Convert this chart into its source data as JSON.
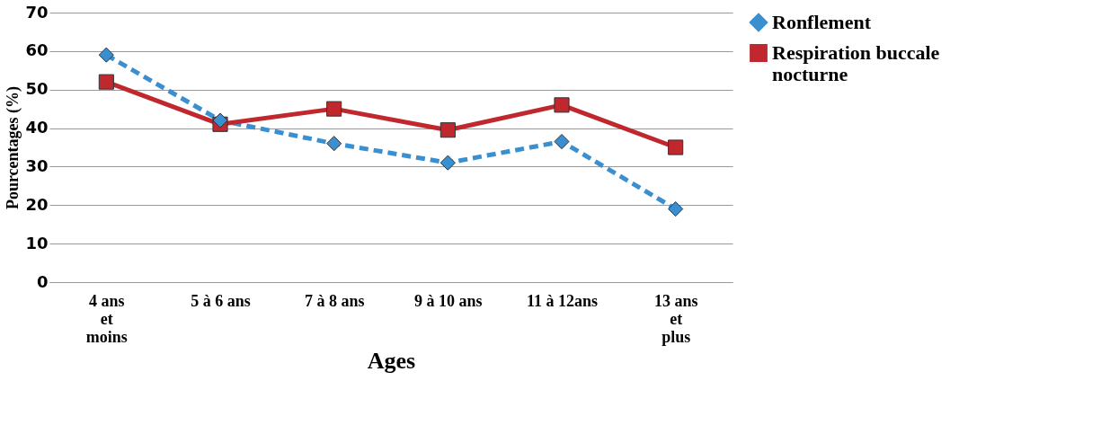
{
  "chart_data": {
    "type": "line",
    "xlabel": "Ages",
    "ylabel": "Pourcentages (%)",
    "categories": [
      "4 ans\net\nmoins",
      "5 à 6 ans",
      "7 à 8 ans",
      "9 à 10 ans",
      "11 à 12ans",
      "13 ans\net\nplus"
    ],
    "ylim": [
      0,
      70
    ],
    "yticks": [
      0,
      10,
      20,
      30,
      40,
      50,
      60,
      70
    ],
    "grid": "y",
    "legend": "right",
    "series": [
      {
        "name": "Ronflement",
        "color": "#3a8fd0",
        "marker": "diamond",
        "line_style": "dashed",
        "values": [
          59,
          42,
          36,
          31,
          36.5,
          19
        ]
      },
      {
        "name": "Respiration buccale\nnocturne",
        "color": "#c0282d",
        "marker": "square",
        "line_style": "solid",
        "values": [
          52,
          41,
          45,
          39.5,
          46,
          35
        ]
      }
    ]
  }
}
